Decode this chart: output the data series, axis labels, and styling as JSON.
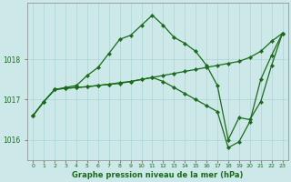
{
  "title": "Graphe pression niveau de la mer (hPa)",
  "line_color": "#1a6b1a",
  "bg_color": "#cce8e8",
  "grid_color": "#aad4d4",
  "yticks": [
    1016,
    1017,
    1018
  ],
  "x_labels": [
    "0",
    "1",
    "2",
    "3",
    "4",
    "5",
    "6",
    "7",
    "8",
    "9",
    "10",
    "11",
    "12",
    "13",
    "14",
    "15",
    "16",
    "17",
    "18",
    "19",
    "20",
    "21",
    "22",
    "23"
  ],
  "series": [
    [
      1016.6,
      1016.95,
      1017.25,
      1017.3,
      1017.35,
      1017.6,
      1017.8,
      1018.15,
      1018.5,
      1018.6,
      1018.85,
      1019.1,
      1018.85,
      1018.55,
      1018.4,
      1018.2,
      1017.85,
      1017.35,
      1016.0,
      1016.55,
      1016.5,
      1016.95,
      1017.85,
      1018.65
    ],
    [
      1016.6,
      1016.95,
      1017.25,
      1017.28,
      1017.3,
      1017.32,
      1017.35,
      1017.38,
      1017.42,
      1017.45,
      1017.5,
      1017.55,
      1017.6,
      1017.65,
      1017.7,
      1017.75,
      1017.8,
      1017.85,
      1017.9,
      1017.95,
      1018.05,
      1018.2,
      1018.45,
      1018.65
    ],
    [
      1016.6,
      1016.95,
      1017.25,
      1017.28,
      1017.3,
      1017.32,
      1017.35,
      1017.38,
      1017.4,
      1017.45,
      1017.5,
      1017.55,
      1017.45,
      1017.3,
      1017.15,
      1017.0,
      1016.85,
      1016.7,
      1015.8,
      1015.95,
      1016.45,
      1017.5,
      1018.1,
      1018.65
    ]
  ],
  "ylim": [
    1015.5,
    1019.4
  ],
  "xlim": [
    -0.5,
    23.5
  ]
}
